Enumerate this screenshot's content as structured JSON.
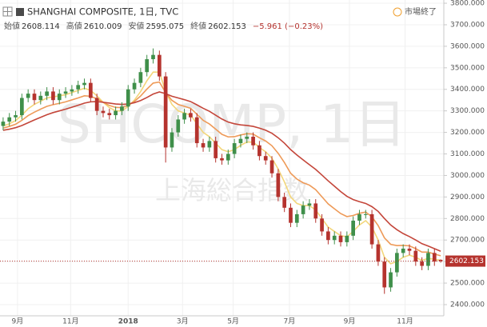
{
  "chart_data": {
    "type": "candlestick",
    "title": "SHANGHAI COMPOSITE, 1日, TVC",
    "watermark": "SHCOMP, 1日",
    "watermark_subtitle": "上海総合指数",
    "status": "市場終了",
    "ohlc_labels": [
      "始値",
      "高値",
      "安値",
      "終値"
    ],
    "change_label": "−5.961 (−0.23%)",
    "up_color": "#3f8f4a",
    "down_color": "#b5332e",
    "x": [
      0.5,
      1.5,
      2.5,
      3.5,
      4.5,
      5.5,
      6.5,
      7.5,
      8.5,
      9.5,
      10.5,
      11.5,
      12.5,
      13.5,
      14.5,
      15.5,
      16.5,
      17.5,
      18.5,
      19.5,
      20.5,
      21.5,
      22.5,
      23.5,
      24.5,
      25.5,
      26.5,
      27.5,
      28.5,
      29.5,
      30.5,
      31.5,
      32.5,
      33.5,
      34.5,
      35.5,
      36.5,
      37.5,
      38.5,
      39.5,
      40.5,
      41.5,
      42.5,
      43.5,
      44.5,
      45.5,
      46.5,
      47.5,
      48.5,
      49.5,
      50.5,
      51.5,
      52.5,
      53.5,
      54.5,
      55.5,
      56.5,
      57.5,
      58.5,
      59.5,
      60.5,
      61.5,
      62.5,
      63.5,
      64.5,
      65.5,
      66.5,
      67.5,
      68.5,
      69.5,
      70.5
    ],
    "open": [
      3230,
      3250,
      3270,
      3280,
      3360,
      3380,
      3350,
      3370,
      3390,
      3350,
      3380,
      3390,
      3400,
      3420,
      3430,
      3360,
      3300,
      3290,
      3280,
      3300,
      3320,
      3400,
      3430,
      3480,
      3540,
      3560,
      3460,
      3130,
      3200,
      3260,
      3290,
      3270,
      3150,
      3130,
      3160,
      3080,
      3070,
      3100,
      3150,
      3170,
      3180,
      3140,
      3090,
      3070,
      3010,
      2900,
      2850,
      2780,
      2820,
      2860,
      2870,
      2800,
      2740,
      2700,
      2720,
      2690,
      2720,
      2790,
      2820,
      2820,
      2680,
      2600,
      2480,
      2550,
      2640,
      2660,
      2650,
      2600,
      2580,
      2640,
      2608.114
    ],
    "high": [
      3270,
      3290,
      3300,
      3380,
      3400,
      3400,
      3390,
      3410,
      3410,
      3400,
      3410,
      3420,
      3440,
      3450,
      3450,
      3380,
      3320,
      3310,
      3320,
      3340,
      3420,
      3450,
      3500,
      3560,
      3590,
      3580,
      3480,
      3220,
      3280,
      3310,
      3310,
      3290,
      3170,
      3180,
      3180,
      3100,
      3120,
      3170,
      3190,
      3200,
      3200,
      3160,
      3110,
      3090,
      3030,
      2920,
      2870,
      2840,
      2880,
      2890,
      2890,
      2820,
      2760,
      2740,
      2740,
      2740,
      2810,
      2840,
      2840,
      2840,
      2700,
      2620,
      2570,
      2660,
      2680,
      2680,
      2670,
      2620,
      2660,
      2660,
      2610.009
    ],
    "low": [
      3210,
      3230,
      3250,
      3260,
      3340,
      3330,
      3330,
      3350,
      3330,
      3330,
      3360,
      3370,
      3380,
      3400,
      3340,
      3280,
      3270,
      3260,
      3260,
      3280,
      3300,
      3380,
      3410,
      3460,
      3520,
      3440,
      3060,
      3110,
      3180,
      3240,
      3250,
      3130,
      3110,
      3110,
      3060,
      3050,
      3050,
      3080,
      3130,
      3150,
      3120,
      3070,
      3050,
      2990,
      2880,
      2830,
      2760,
      2760,
      2800,
      2840,
      2780,
      2720,
      2680,
      2680,
      2670,
      2670,
      2700,
      2770,
      2800,
      2660,
      2580,
      2450,
      2460,
      2530,
      2620,
      2630,
      2580,
      2560,
      2560,
      2580,
      2595.075
    ],
    "close": [
      3250,
      3270,
      3280,
      3360,
      3380,
      3350,
      3370,
      3390,
      3350,
      3380,
      3390,
      3400,
      3420,
      3430,
      3360,
      3300,
      3290,
      3280,
      3300,
      3320,
      3400,
      3430,
      3480,
      3540,
      3560,
      3460,
      3130,
      3200,
      3260,
      3290,
      3270,
      3150,
      3130,
      3160,
      3080,
      3070,
      3100,
      3150,
      3170,
      3180,
      3140,
      3090,
      3070,
      3010,
      2900,
      2850,
      2780,
      2820,
      2860,
      2870,
      2800,
      2740,
      2700,
      2720,
      2690,
      2720,
      2790,
      2820,
      2820,
      2680,
      2600,
      2480,
      2550,
      2640,
      2660,
      2650,
      2600,
      2580,
      2640,
      2600,
      2602.153
    ],
    "series": [
      {
        "color": "#f3d67a",
        "values": [
          3230,
          3240,
          3255,
          3280,
          3310,
          3330,
          3345,
          3360,
          3365,
          3370,
          3375,
          3385,
          3395,
          3405,
          3395,
          3370,
          3340,
          3315,
          3300,
          3300,
          3320,
          3350,
          3390,
          3440,
          3480,
          3480,
          3390,
          3330,
          3300,
          3290,
          3280,
          3240,
          3200,
          3180,
          3150,
          3120,
          3110,
          3120,
          3140,
          3155,
          3155,
          3130,
          3110,
          3080,
          3030,
          2970,
          2900,
          2870,
          2860,
          2860,
          2840,
          2800,
          2760,
          2740,
          2720,
          2715,
          2740,
          2770,
          2790,
          2760,
          2700,
          2620,
          2590,
          2600,
          2620,
          2630,
          2620,
          2605,
          2615,
          2610,
          2606
        ]
      },
      {
        "color": "#ee9a58",
        "values": [
          3220,
          3228,
          3238,
          3256,
          3278,
          3294,
          3308,
          3321,
          3329,
          3335,
          3342,
          3351,
          3360,
          3370,
          3368,
          3356,
          3340,
          3325,
          3316,
          3315,
          3326,
          3344,
          3369,
          3401,
          3429,
          3434,
          3385,
          3349,
          3330,
          3321,
          3312,
          3284,
          3256,
          3239,
          3215,
          3191,
          3179,
          3180,
          3188,
          3194,
          3192,
          3175,
          3160,
          3138,
          3103,
          3060,
          3010,
          2983,
          2966,
          2955,
          2934,
          2901,
          2868,
          2845,
          2823,
          2809,
          2814,
          2824,
          2830,
          2808,
          2767,
          2710,
          2680,
          2674,
          2675,
          2673,
          2660,
          2644,
          2644,
          2635,
          2627
        ]
      },
      {
        "color": "#c4463a",
        "values": [
          3210,
          3215,
          3222,
          3232,
          3245,
          3258,
          3270,
          3282,
          3292,
          3300,
          3308,
          3317,
          3326,
          3336,
          3342,
          3343,
          3340,
          3336,
          3332,
          3330,
          3332,
          3338,
          3348,
          3362,
          3378,
          3388,
          3380,
          3368,
          3360,
          3352,
          3343,
          3328,
          3312,
          3298,
          3280,
          3262,
          3248,
          3240,
          3235,
          3232,
          3228,
          3220,
          3210,
          3196,
          3175,
          3150,
          3120,
          3095,
          3072,
          3050,
          3028,
          3002,
          2975,
          2950,
          2925,
          2903,
          2888,
          2878,
          2870,
          2855,
          2833,
          2800,
          2770,
          2748,
          2730,
          2716,
          2700,
          2683,
          2672,
          2660,
          2648
        ]
      }
    ],
    "xlim": [
      0,
      71
    ],
    "xticks": [
      {
        "value": 2.8,
        "label": "9月"
      },
      {
        "value": 11.3,
        "label": "11月"
      },
      {
        "value": 20.5,
        "label": "2018"
      },
      {
        "value": 29.2,
        "label": "3月"
      },
      {
        "value": 37.3,
        "label": "5月"
      },
      {
        "value": 46.3,
        "label": "7月"
      },
      {
        "value": 55.9,
        "label": "9月"
      },
      {
        "value": 64.8,
        "label": "11月"
      }
    ],
    "ylim": [
      2348,
      3815
    ],
    "yticks": [
      {
        "value": 2400,
        "label": "2400.000"
      },
      {
        "value": 2500,
        "label": "2500.000"
      },
      {
        "value": 2600,
        "label": "2600.000"
      },
      {
        "value": 2700,
        "label": "2700.000"
      },
      {
        "value": 2800,
        "label": "2800.000"
      },
      {
        "value": 2900,
        "label": "2900.000"
      },
      {
        "value": 3000,
        "label": "3000.000"
      },
      {
        "value": 3100,
        "label": "3100.000"
      },
      {
        "value": 3200,
        "label": "3200.000"
      },
      {
        "value": 3300,
        "label": "3300.000"
      },
      {
        "value": 3400,
        "label": "3400.000"
      },
      {
        "value": 3500,
        "label": "3500.000"
      },
      {
        "value": 3600,
        "label": "3600.000"
      },
      {
        "value": 3700,
        "label": "3700.000"
      },
      {
        "value": 3800,
        "label": "3800.000"
      }
    ],
    "grid": true
  }
}
